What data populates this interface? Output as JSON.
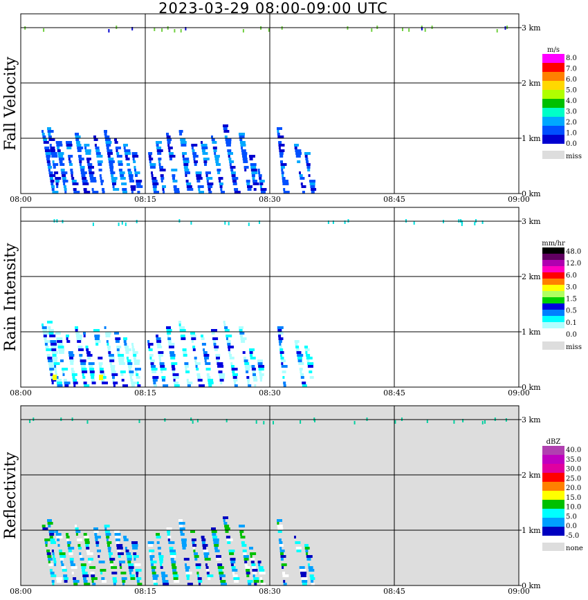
{
  "title": "2023-03-29   08:00-09:00 UTC",
  "chart_data": {
    "type": "heatmap",
    "x_ticks": [
      "08:00",
      "08:15",
      "08:30",
      "08:45",
      "09:00"
    ],
    "y_ticks": [
      "0 km",
      "1 km",
      "2 km",
      "3 km"
    ],
    "xlim": [
      "08:00",
      "09:00"
    ],
    "ylim_km": [
      0,
      3.2
    ],
    "grid": true,
    "panels": [
      {
        "name": "Fall Velocity",
        "units": "m/s",
        "background": "#ffffff",
        "legend": {
          "labels": [
            "8.0",
            "7.0",
            "6.0",
            "5.0",
            "4.0",
            "3.0",
            "2.0",
            "1.0",
            "0.0",
            "miss"
          ],
          "colors": [
            "#ff00ff",
            "#ff0000",
            "#ff8000",
            "#ffd800",
            "#b0ff00",
            "#00c000",
            "#00ffc8",
            "#00a8ff",
            "#0050ff",
            "#0000d0"
          ],
          "miss_color": "#dddddd"
        }
      },
      {
        "name": "Rain Intensity",
        "units": "mm/hr",
        "background": "#ffffff",
        "legend": {
          "labels": [
            "48.0",
            "12.0",
            "6.0",
            "3.0",
            "1.5",
            "0.5",
            "0.1",
            "0.0",
            "miss"
          ],
          "colors": [
            "#000000",
            "#600060",
            "#b000b0",
            "#ff00c0",
            "#ff0000",
            "#ff8000",
            "#ffff00",
            "#b0ff60",
            "#00d000",
            "#0000e0",
            "#0080ff",
            "#00ffff",
            "#b0ffff",
            "#ffffff"
          ],
          "miss_color": "#dddddd"
        }
      },
      {
        "name": "Reflectivity",
        "units": "dBZ",
        "background": "#dddddd",
        "legend": {
          "labels": [
            "40.0",
            "35.0",
            "30.0",
            "25.0",
            "20.0",
            "15.0",
            "10.0",
            "5.0",
            "0.0",
            "-5.0",
            "none"
          ],
          "colors": [
            "#b040b0",
            "#c000c0",
            "#e000a0",
            "#ff0000",
            "#ff8000",
            "#ffff00",
            "#00c000",
            "#00ffff",
            "#00a0ff",
            "#0000c0"
          ],
          "miss_color": "#dddddd"
        }
      }
    ]
  }
}
